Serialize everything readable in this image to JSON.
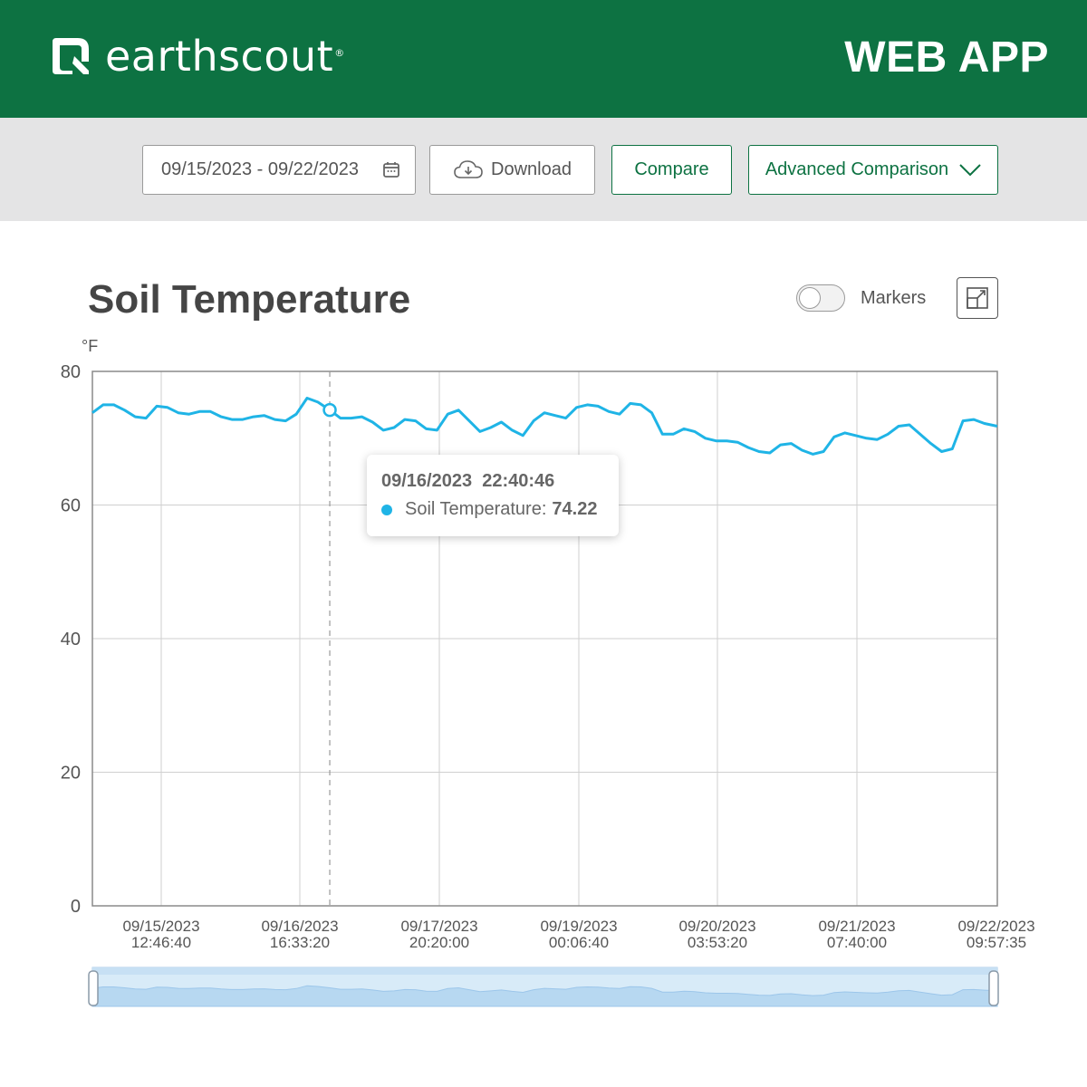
{
  "header": {
    "logo_text": "earthscout",
    "logo_reg": "®",
    "app_label": "WEB APP",
    "brand_color": "#0d7242"
  },
  "toolbar": {
    "date_range": "09/15/2023 - 09/22/2023",
    "download_label": "Download",
    "compare_label": "Compare",
    "advanced_label": "Advanced Comparison"
  },
  "chart_header": {
    "title": "Soil Temperature",
    "markers_label": "Markers",
    "markers_on": false
  },
  "tooltip": {
    "datetime": "09/16/2023  22:40:46",
    "series_label": "Soil Temperature:",
    "value": "74.22"
  },
  "chart_data": {
    "type": "line",
    "title": "Soil Temperature",
    "ylabel": "°F",
    "ylim": [
      0,
      80
    ],
    "yticks": [
      0,
      20,
      40,
      60,
      80
    ],
    "grid": true,
    "line_color": "#1fb4e6",
    "x_tick_labels": [
      [
        "09/15/2023",
        "12:46:40"
      ],
      [
        "09/16/2023",
        "16:33:20"
      ],
      [
        "09/17/2023",
        "20:20:00"
      ],
      [
        "09/19/2023",
        "00:06:40"
      ],
      [
        "09/20/2023",
        "03:53:20"
      ],
      [
        "09/21/2023",
        "07:40:00"
      ],
      [
        "09/22/2023",
        "09:57:35"
      ]
    ],
    "x_range": [
      "09/15/2023 00:00",
      "09/22/2023 09:57:35"
    ],
    "highlight": {
      "x": "09/16/2023 22:40:46",
      "y": 74.22
    },
    "series": [
      {
        "name": "Soil Temperature",
        "x": [
          "09/15/2023 00:00",
          "09/15/2023 02:06",
          "09/15/2023 04:13",
          "09/15/2023 06:20",
          "09/15/2023 08:26",
          "09/15/2023 10:33",
          "09/15/2023 12:40",
          "09/15/2023 14:46",
          "09/15/2023 16:53",
          "09/15/2023 19:00",
          "09/15/2023 21:06",
          "09/15/2023 23:13",
          "09/16/2023 01:20",
          "09/16/2023 03:26",
          "09/16/2023 05:33",
          "09/16/2023 07:40",
          "09/16/2023 09:46",
          "09/16/2023 11:53",
          "09/16/2023 14:00",
          "09/16/2023 16:06",
          "09/16/2023 18:13",
          "09/16/2023 20:20",
          "09/16/2023 22:40",
          "09/17/2023 00:46",
          "09/17/2023 02:53",
          "09/17/2023 05:00",
          "09/17/2023 07:06",
          "09/17/2023 09:13",
          "09/17/2023 11:20",
          "09/17/2023 13:26",
          "09/17/2023 15:33",
          "09/17/2023 17:40",
          "09/17/2023 19:46",
          "09/17/2023 21:53",
          "09/18/2023 00:00",
          "09/18/2023 02:06",
          "09/18/2023 04:13",
          "09/18/2023 06:20",
          "09/18/2023 08:26",
          "09/18/2023 10:33",
          "09/18/2023 12:40",
          "09/18/2023 14:46",
          "09/18/2023 16:53",
          "09/18/2023 19:00",
          "09/18/2023 21:06",
          "09/18/2023 23:13",
          "09/19/2023 01:20",
          "09/19/2023 03:26",
          "09/19/2023 05:33",
          "09/19/2023 07:40",
          "09/19/2023 09:46",
          "09/19/2023 11:53",
          "09/19/2023 14:00",
          "09/19/2023 16:06",
          "09/19/2023 18:13",
          "09/19/2023 20:20",
          "09/19/2023 22:26",
          "09/20/2023 00:33",
          "09/20/2023 02:40",
          "09/20/2023 04:46",
          "09/20/2023 06:53",
          "09/20/2023 09:00",
          "09/20/2023 11:06",
          "09/20/2023 13:13",
          "09/20/2023 15:20",
          "09/20/2023 17:26",
          "09/20/2023 19:33",
          "09/20/2023 21:40",
          "09/20/2023 23:46",
          "09/21/2023 01:53",
          "09/21/2023 04:00",
          "09/21/2023 06:06",
          "09/21/2023 08:13",
          "09/21/2023 10:20",
          "09/21/2023 12:26",
          "09/21/2023 14:33",
          "09/21/2023 16:40",
          "09/21/2023 18:46",
          "09/21/2023 20:53",
          "09/21/2023 23:00",
          "09/22/2023 01:06",
          "09/22/2023 03:13",
          "09/22/2023 05:20",
          "09/22/2023 07:26",
          "09/22/2023 09:57"
        ],
        "values": [
          73.8,
          75.0,
          75.0,
          74.2,
          73.2,
          73.0,
          74.8,
          74.6,
          73.8,
          73.6,
          74.0,
          74.0,
          73.2,
          72.8,
          72.8,
          73.2,
          73.4,
          72.8,
          72.6,
          73.6,
          76.0,
          75.4,
          74.22,
          73.0,
          73.0,
          73.2,
          72.4,
          71.2,
          71.6,
          72.8,
          72.6,
          71.4,
          71.2,
          73.6,
          74.2,
          72.6,
          71.0,
          71.6,
          72.4,
          71.2,
          70.4,
          72.6,
          73.8,
          73.4,
          73.0,
          74.6,
          75.0,
          74.8,
          74.0,
          73.6,
          75.2,
          75.0,
          73.8,
          70.6,
          70.6,
          71.4,
          71.0,
          70.0,
          69.6,
          69.6,
          69.4,
          68.6,
          68.0,
          67.8,
          69.0,
          69.2,
          68.2,
          67.6,
          68.0,
          70.2,
          70.8,
          70.4,
          70.0,
          69.8,
          70.6,
          71.8,
          72.0,
          70.6,
          69.2,
          68.0,
          68.4,
          72.6,
          72.8,
          72.2,
          71.8
        ]
      }
    ]
  }
}
